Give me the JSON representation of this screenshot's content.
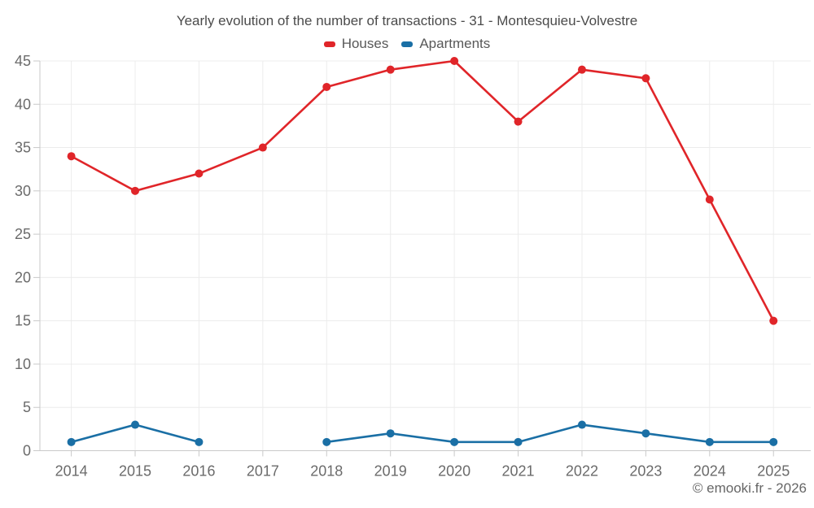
{
  "title": "Yearly evolution of the number of transactions - 31 - Montesquieu-Volvestre",
  "footer": "© emooki.fr - 2026",
  "chart_data": {
    "type": "line",
    "title": "Yearly evolution of the number of transactions - 31 - Montesquieu-Volvestre",
    "x": [
      2014,
      2015,
      2016,
      2017,
      2018,
      2019,
      2020,
      2021,
      2022,
      2023,
      2024,
      2025
    ],
    "series": [
      {
        "name": "Houses",
        "color": "#e02529",
        "values": [
          34,
          30,
          32,
          35,
          42,
          44,
          45,
          38,
          44,
          43,
          29,
          15
        ]
      },
      {
        "name": "Apartments",
        "color": "#1a6fa5",
        "values": [
          1,
          3,
          1,
          null,
          1,
          2,
          1,
          1,
          3,
          2,
          1,
          1
        ]
      }
    ],
    "xlabel": "",
    "ylabel": "",
    "ylim": [
      0,
      45
    ],
    "yticks": [
      0,
      5,
      10,
      15,
      20,
      25,
      30,
      35,
      40,
      45
    ],
    "grid": true,
    "legend_position": "top",
    "marker": "circle"
  },
  "style": {
    "grid_color": "#ececec",
    "axis_color": "#c9c9c9",
    "tick_text_color": "#6b6b6b"
  }
}
